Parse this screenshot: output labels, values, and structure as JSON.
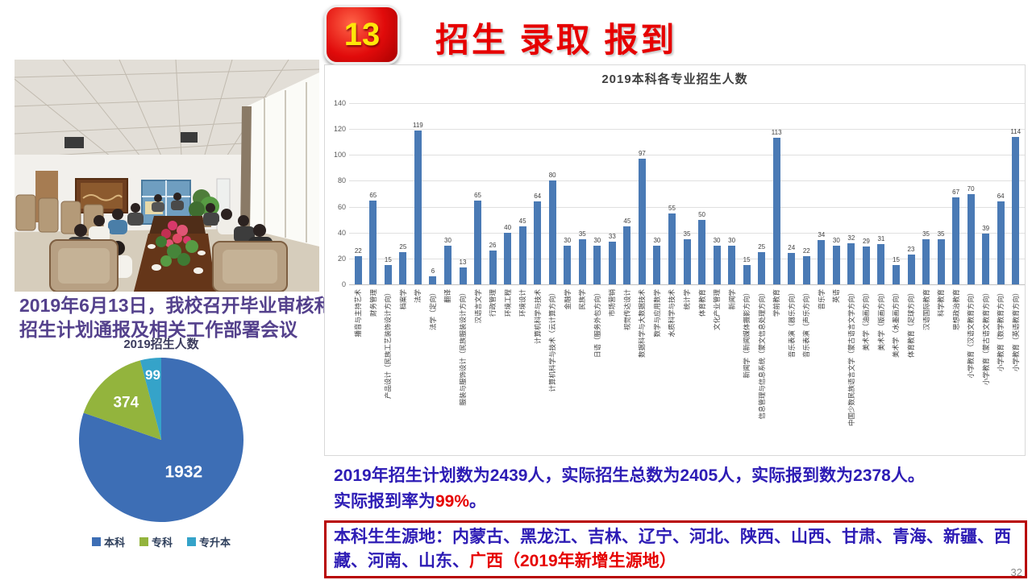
{
  "header": {
    "badge_number": "13",
    "title": "招生 录取 报到"
  },
  "photo": {
    "caption": "2019年6月13日，我校召开毕业审核和招生计划通报及相关工作部署会议"
  },
  "chart_data": [
    {
      "type": "pie",
      "title": "2019招生人数",
      "labels": [
        "本科",
        "专科",
        "专升本"
      ],
      "values": [
        1932,
        374,
        99
      ],
      "colors": [
        "#3d6eb5",
        "#93b43d",
        "#35a3c9"
      ],
      "legend_position": "bottom",
      "data_label_color": "#ffffff"
    },
    {
      "type": "bar",
      "title": "2019本科各专业招生人数",
      "categories": [
        "播音与主持艺术",
        "财务管理",
        "产品设计（民族工艺装饰设计方向）",
        "档案学",
        "法学",
        "法学（定向）",
        "翻译",
        "服装与服饰设计（民族服装设计方向）",
        "汉语言文学",
        "行政管理",
        "环境工程",
        "环境设计",
        "计算机科学与技术",
        "计算机科学与技术（云计算方向）",
        "金融学",
        "民族学",
        "日语（服务外包方向）",
        "市场营销",
        "视觉传达设计",
        "数据科学与大数据技术",
        "数学与应用数学",
        "水质科学与技术",
        "统计学",
        "体育教育",
        "文化产业管理",
        "新闻学",
        "新闻学（新闻媒体摄影方向）",
        "信息管理与信息系统（蒙文信息处理方向）",
        "学前教育",
        "音乐表演（器乐方向）",
        "音乐表演（声乐方向）",
        "音乐学",
        "英语",
        "中国少数民族语言文学（蒙古语言文学方向）",
        "美术学（油画方向）",
        "美术学（版画方向）",
        "美术学（水墨画方向）",
        "体育教育（足球方向）",
        "汉语国际教育",
        "科学教育",
        "思想政治教育",
        "小学教育（汉语文教育方向）",
        "小学教育（蒙古语文教育方向）",
        "小学教育（数学教育方向）",
        "小学教育（英语教育方向）"
      ],
      "values": [
        22,
        65,
        15,
        25,
        119,
        6,
        30,
        13,
        65,
        26,
        40,
        45,
        64,
        80,
        30,
        35,
        30,
        33,
        45,
        97,
        30,
        55,
        35,
        50,
        30,
        30,
        15,
        25,
        113,
        24,
        22,
        34,
        30,
        32,
        29,
        31,
        15,
        23,
        35,
        35,
        67,
        70,
        39,
        64,
        114
      ],
      "ylabel": "",
      "xlabel": "",
      "ylim": [
        0,
        140
      ],
      "ytick_interval": 20,
      "yticks": [
        0,
        20,
        40,
        60,
        80,
        100,
        120,
        140
      ],
      "bar_color": "#4a7ab5",
      "grid": true
    }
  ],
  "summary": {
    "line1": "2019年招生计划数为2439人，实际招生总数为2405人，实际报到数为2378人。",
    "line2_prefix": "实际报到率为",
    "line2_highlight": "99%",
    "line2_suffix": "。"
  },
  "source_box": {
    "blue_text": "本科生生源地：内蒙古、黑龙江、吉林、辽宁、河北、陕西、山西、甘肃、青海、新疆、西藏、河南、山东、",
    "red_text": "广西（2019年新增生源地）"
  },
  "page_number": "32",
  "colors": {
    "title_red": "#e60000",
    "badge_red": "#e10b0b",
    "badge_number_yellow": "#ffe60a",
    "caption_purple": "#54418c",
    "summary_blue": "#2d1cb5",
    "box_border_red": "#b80000",
    "bar_blue": "#4a7ab5",
    "pie_blue": "#3d6eb5",
    "pie_green": "#93b43d",
    "pie_teal": "#35a3c9",
    "page_number_gray": "#8c8c8c"
  }
}
